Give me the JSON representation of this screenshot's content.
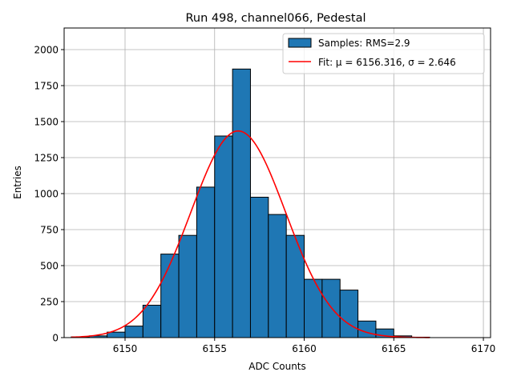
{
  "chart_data": {
    "type": "bar",
    "title": "Run 498, channel066, Pedestal",
    "xlabel": "ADC Counts",
    "ylabel": "Entries",
    "xlim": [
      6146.6,
      6170.4
    ],
    "ylim": [
      0,
      2150
    ],
    "xticks": [
      6150,
      6155,
      6160,
      6165,
      6170
    ],
    "yticks": [
      0,
      250,
      500,
      750,
      1000,
      1250,
      1500,
      1750,
      2000
    ],
    "grid": true,
    "legend_position": "top-right",
    "colors": {
      "bars": "#1f77b4",
      "bar_edge": "#000000",
      "fit": "#ff0000",
      "grid": "#b0b0b0"
    },
    "histogram": {
      "name": "Samples: RMS=2.9",
      "bins": [
        {
          "x0": 6147,
          "x1": 6148,
          "value": 5
        },
        {
          "x0": 6148,
          "x1": 6149,
          "value": 12
        },
        {
          "x0": 6149,
          "x1": 6150,
          "value": 38
        },
        {
          "x0": 6150,
          "x1": 6151,
          "value": 80
        },
        {
          "x0": 6151,
          "x1": 6152,
          "value": 225
        },
        {
          "x0": 6152,
          "x1": 6153,
          "value": 580
        },
        {
          "x0": 6153,
          "x1": 6154,
          "value": 710
        },
        {
          "x0": 6154,
          "x1": 6155,
          "value": 1045
        },
        {
          "x0": 6155,
          "x1": 6156,
          "value": 1400
        },
        {
          "x0": 6156,
          "x1": 6157,
          "value": 1865
        },
        {
          "x0": 6157,
          "x1": 6158,
          "value": 975
        },
        {
          "x0": 6158,
          "x1": 6159,
          "value": 855
        },
        {
          "x0": 6159,
          "x1": 6160,
          "value": 710
        },
        {
          "x0": 6160,
          "x1": 6161,
          "value": 405
        },
        {
          "x0": 6161,
          "x1": 6162,
          "value": 405
        },
        {
          "x0": 6162,
          "x1": 6163,
          "value": 330
        },
        {
          "x0": 6163,
          "x1": 6164,
          "value": 115
        },
        {
          "x0": 6164,
          "x1": 6165,
          "value": 60
        },
        {
          "x0": 6165,
          "x1": 6166,
          "value": 12
        },
        {
          "x0": 6166,
          "x1": 6167,
          "value": 3
        }
      ]
    },
    "fit": {
      "name": "Fit: μ = 6156.316, σ = 2.646",
      "type": "gaussian",
      "mu": 6156.316,
      "sigma": 2.646,
      "amplitude": 1435,
      "x_range": [
        6147,
        6167
      ]
    }
  }
}
